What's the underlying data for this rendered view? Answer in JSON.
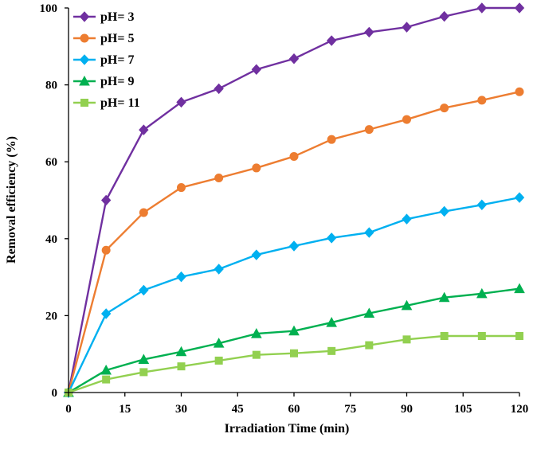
{
  "chart_data": {
    "type": "line",
    "title": "",
    "xlabel": "Irradiation Time (min)",
    "ylabel": "Removal efficiency (%)",
    "xlim": [
      0,
      120
    ],
    "ylim": [
      0,
      100
    ],
    "xticks": [
      0,
      15,
      30,
      45,
      60,
      75,
      90,
      105,
      120
    ],
    "yticks": [
      0,
      20,
      40,
      60,
      80,
      100
    ],
    "grid": false,
    "legend_position": "top-left",
    "x": [
      0,
      10,
      20,
      30,
      40,
      50,
      60,
      70,
      80,
      90,
      100,
      110,
      120
    ],
    "series": [
      {
        "name": "pH= 3",
        "color": "#7030A0",
        "marker": "diamond",
        "values": [
          0,
          50,
          68.3,
          75.5,
          79,
          84,
          86.8,
          91.5,
          93.7,
          95,
          97.8,
          100,
          100
        ]
      },
      {
        "name": "pH= 5",
        "color": "#ED7D31",
        "marker": "circle",
        "values": [
          0,
          37,
          46.8,
          53.3,
          55.8,
          58.4,
          61.4,
          65.8,
          68.4,
          71,
          74,
          76,
          78.2
        ]
      },
      {
        "name": "pH= 7",
        "color": "#00B0F0",
        "marker": "diamond",
        "values": [
          0,
          20.5,
          26.6,
          30.1,
          32.1,
          35.8,
          38.1,
          40.2,
          41.6,
          45.1,
          47.1,
          48.8,
          50.7
        ]
      },
      {
        "name": "pH= 9",
        "color": "#00B050",
        "marker": "triangle",
        "values": [
          0,
          5.8,
          8.6,
          10.6,
          12.8,
          15.3,
          16,
          18.2,
          20.6,
          22.6,
          24.7,
          25.7,
          27
        ]
      },
      {
        "name": "pH= 11",
        "color": "#92D050",
        "marker": "square",
        "values": [
          0,
          3.4,
          5.3,
          6.8,
          8.3,
          9.8,
          10.2,
          10.8,
          12.3,
          13.8,
          14.7,
          14.7,
          14.7
        ]
      }
    ]
  }
}
